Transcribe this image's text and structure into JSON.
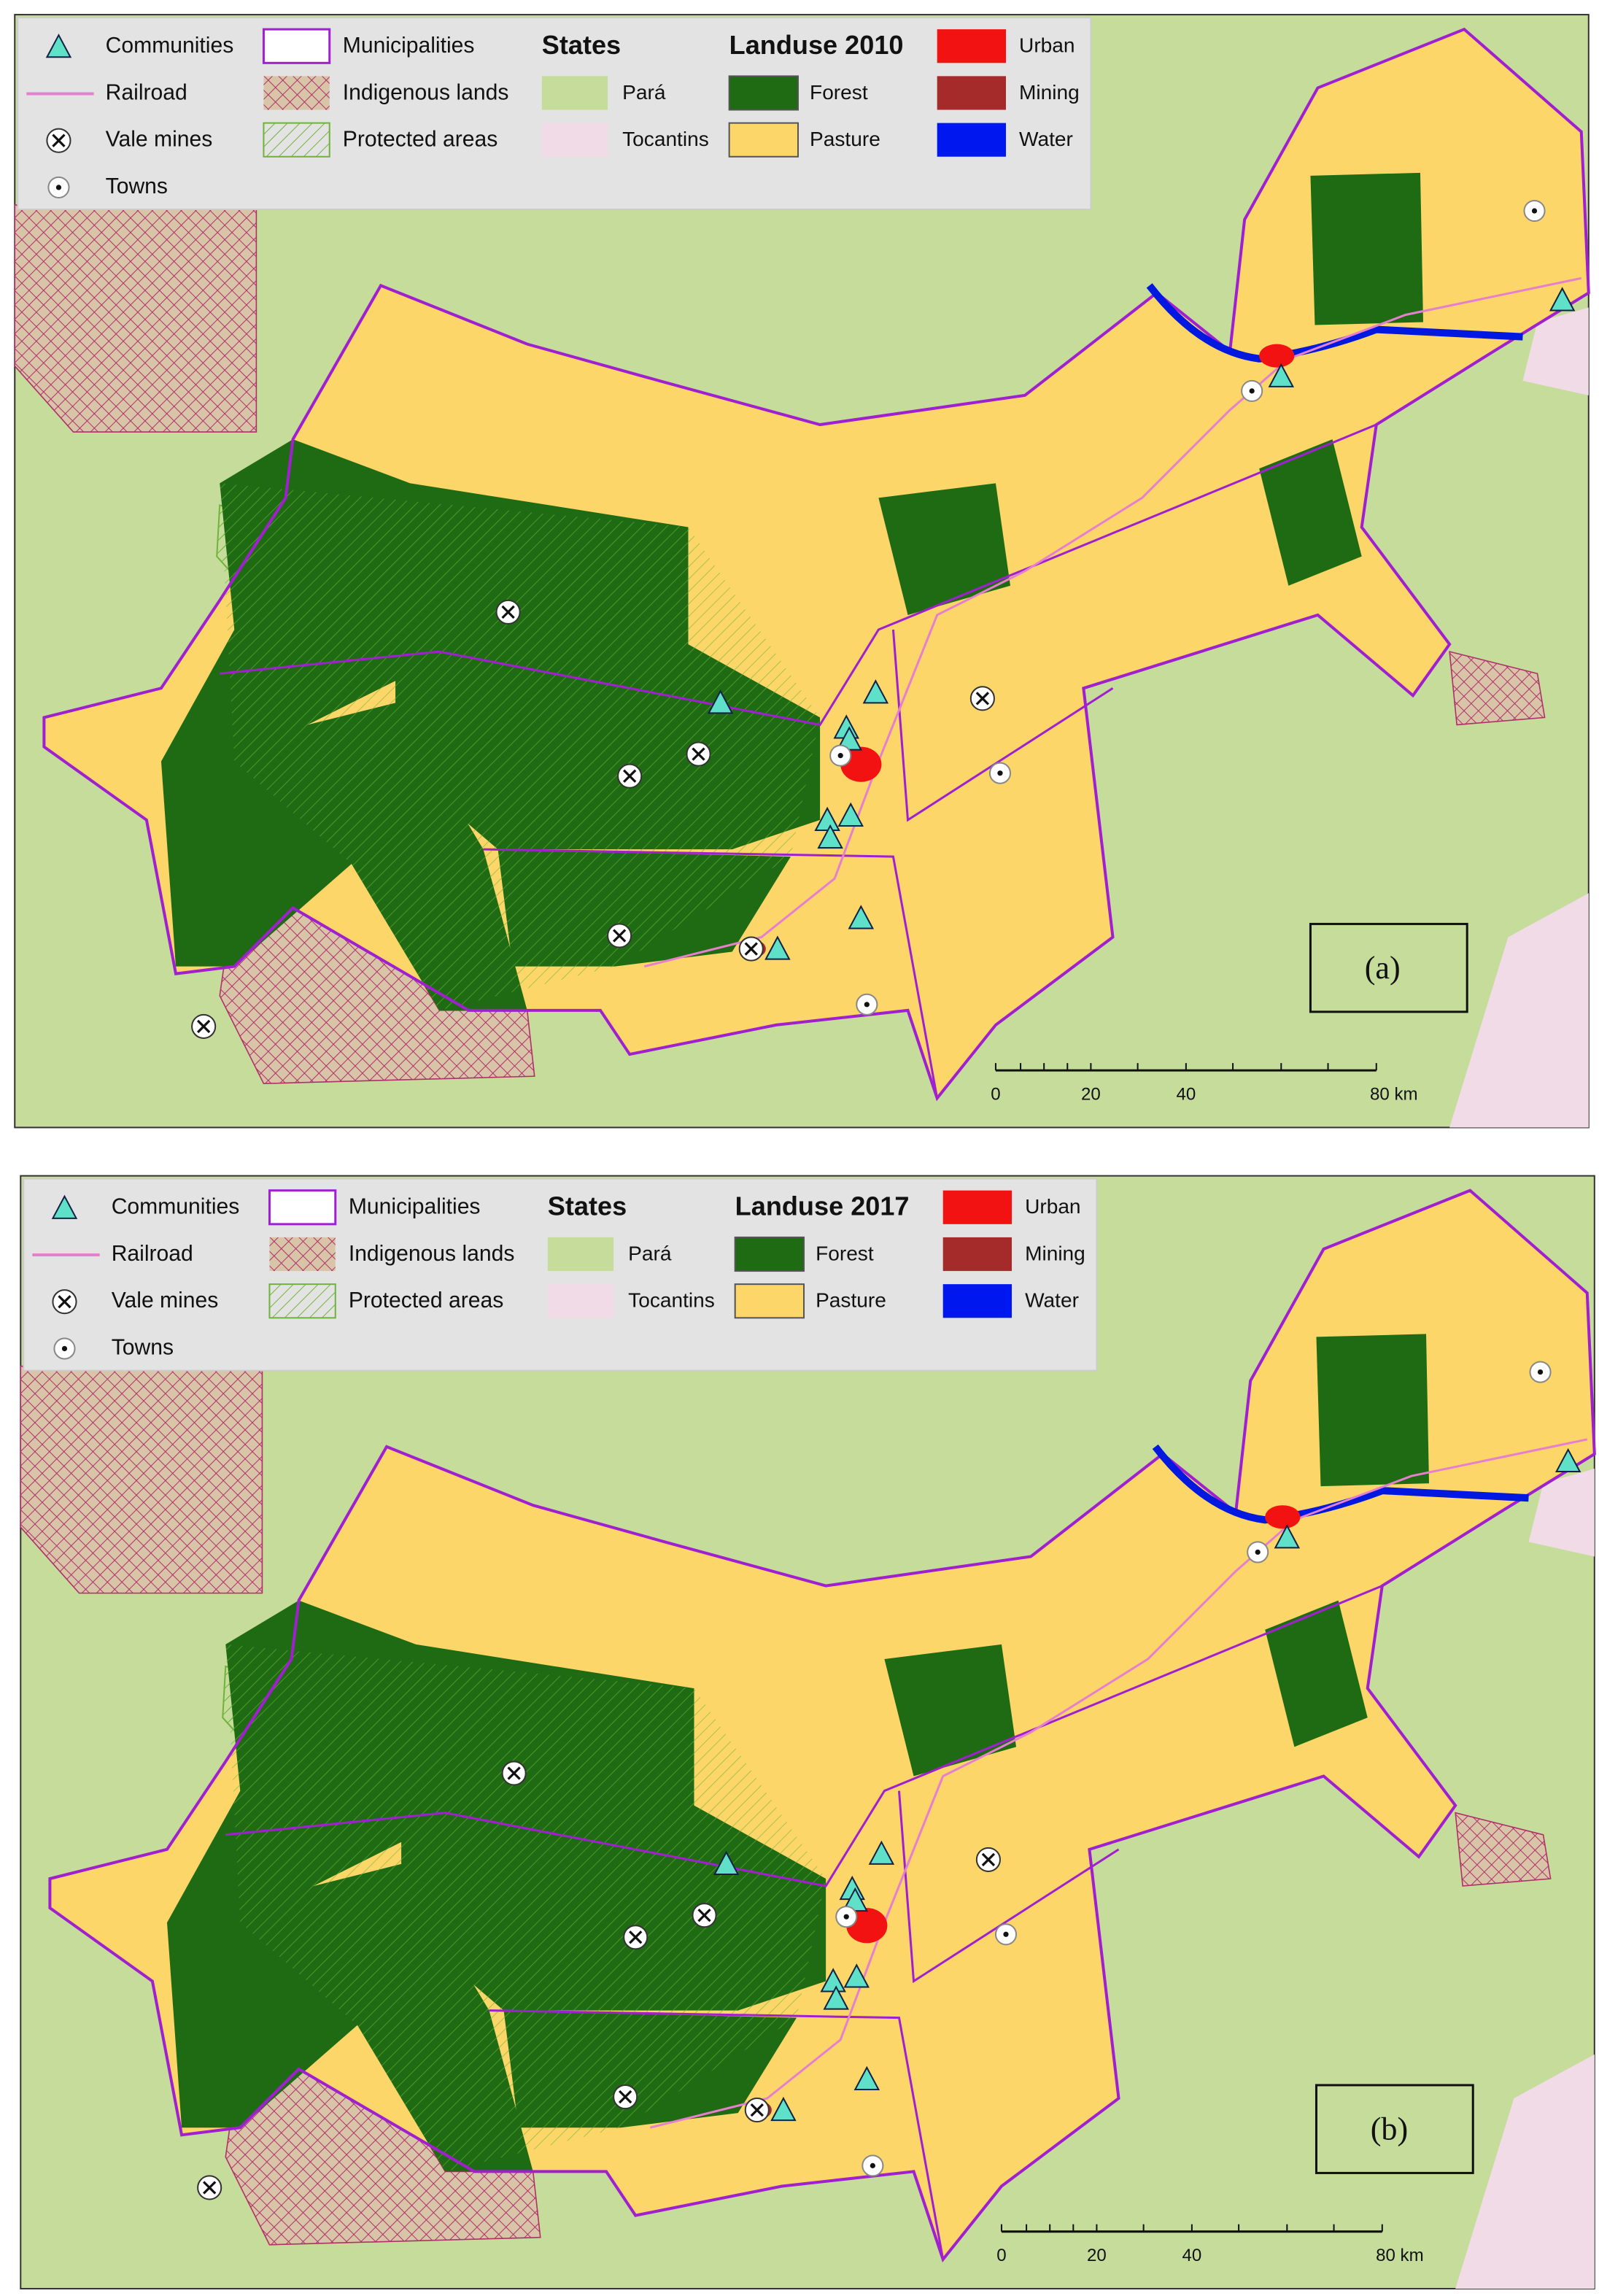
{
  "panels": [
    {
      "legend": {
        "communities": "Communities",
        "railroad": "Railroad",
        "vale_mines": "Vale mines",
        "towns": "Towns",
        "municipalities": "Municipalities",
        "indigenous_lands": "Indigenous lands",
        "protected_areas": "Protected areas",
        "states_title": "States",
        "para": "Pará",
        "tocantins": "Tocantins",
        "landuse_title": "Landuse 2010",
        "forest": "Forest",
        "pasture": "Pasture",
        "urban": "Urban",
        "mining": "Mining",
        "water": "Water"
      },
      "scale_bar": [
        "0",
        "20",
        "40",
        "80 km"
      ],
      "label": "(a)"
    },
    {
      "legend": {
        "communities": "Communities",
        "railroad": "Railroad",
        "vale_mines": "Vale mines",
        "towns": "Towns",
        "municipalities": "Municipalities",
        "indigenous_lands": "Indigenous lands",
        "protected_areas": "Protected areas",
        "states_title": "States",
        "para": "Pará",
        "tocantins": "Tocantins",
        "landuse_title": "Landuse 2017",
        "forest": "Forest",
        "pasture": "Pasture",
        "urban": "Urban",
        "mining": "Mining",
        "water": "Water"
      },
      "scale_bar": [
        "0",
        "20",
        "40",
        "80 km"
      ],
      "label": "(b)"
    }
  ]
}
